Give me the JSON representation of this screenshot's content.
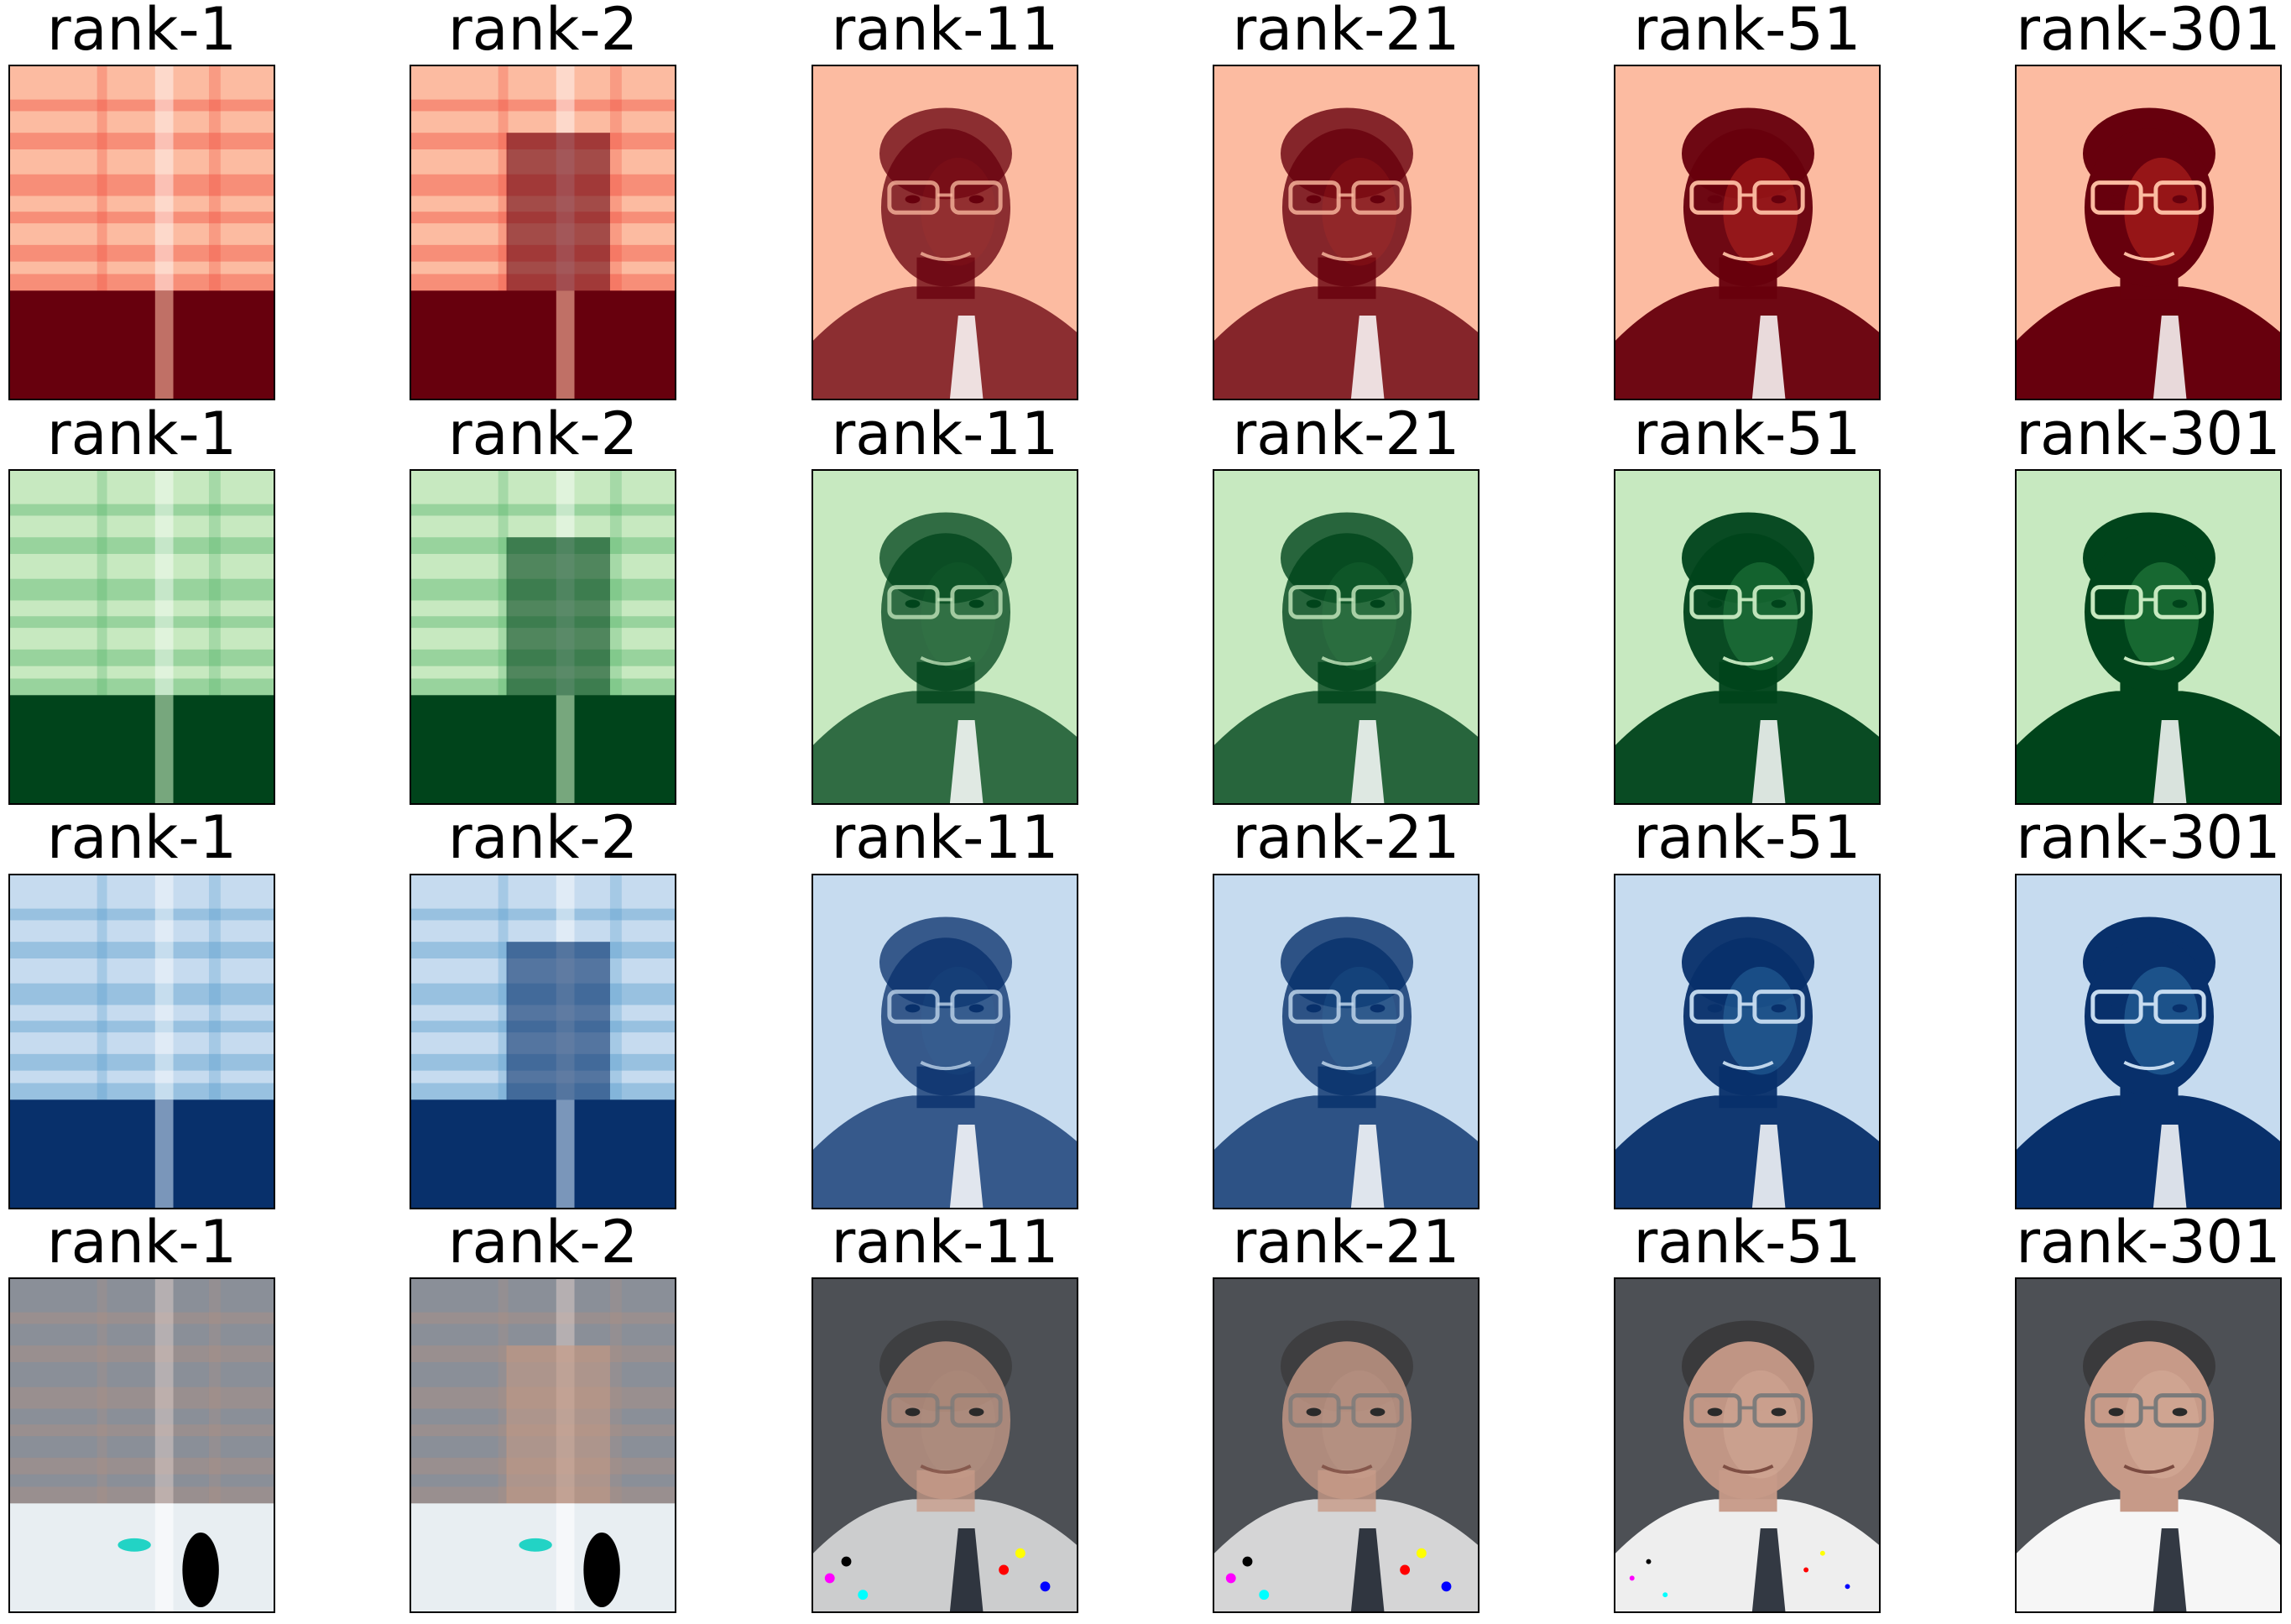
{
  "figure": {
    "rows": [
      {
        "channel": "red",
        "palette": {
          "light": "#fcbba1",
          "mid": "#ef3b2c",
          "dark": "#67000d"
        },
        "panels": [
          {
            "title": "rank-1",
            "rank": 1
          },
          {
            "title": "rank-2",
            "rank": 2
          },
          {
            "title": "rank-11",
            "rank": 11
          },
          {
            "title": "rank-21",
            "rank": 21
          },
          {
            "title": "rank-51",
            "rank": 51
          },
          {
            "title": "rank-301",
            "rank": 301
          }
        ]
      },
      {
        "channel": "green",
        "palette": {
          "light": "#c7e9c0",
          "mid": "#41ab5d",
          "dark": "#00441b"
        },
        "panels": [
          {
            "title": "rank-1",
            "rank": 1
          },
          {
            "title": "rank-2",
            "rank": 2
          },
          {
            "title": "rank-11",
            "rank": 11
          },
          {
            "title": "rank-21",
            "rank": 21
          },
          {
            "title": "rank-51",
            "rank": 51
          },
          {
            "title": "rank-301",
            "rank": 301
          }
        ]
      },
      {
        "channel": "blue",
        "palette": {
          "light": "#c6dbef",
          "mid": "#4292c6",
          "dark": "#08306b"
        },
        "panels": [
          {
            "title": "rank-1",
            "rank": 1
          },
          {
            "title": "rank-2",
            "rank": 2
          },
          {
            "title": "rank-11",
            "rank": 11
          },
          {
            "title": "rank-21",
            "rank": 21
          },
          {
            "title": "rank-51",
            "rank": 51
          },
          {
            "title": "rank-301",
            "rank": 301
          }
        ]
      },
      {
        "channel": "rgb",
        "palette": {
          "light": "#f2f2f2",
          "mid": "#b08a78",
          "dark": "#4a4a4e"
        },
        "panels": [
          {
            "title": "rank-1",
            "rank": 1
          },
          {
            "title": "rank-2",
            "rank": 2
          },
          {
            "title": "rank-11",
            "rank": 11
          },
          {
            "title": "rank-21",
            "rank": 21
          },
          {
            "title": "rank-51",
            "rank": 51
          },
          {
            "title": "rank-301",
            "rank": 301
          }
        ]
      }
    ]
  }
}
